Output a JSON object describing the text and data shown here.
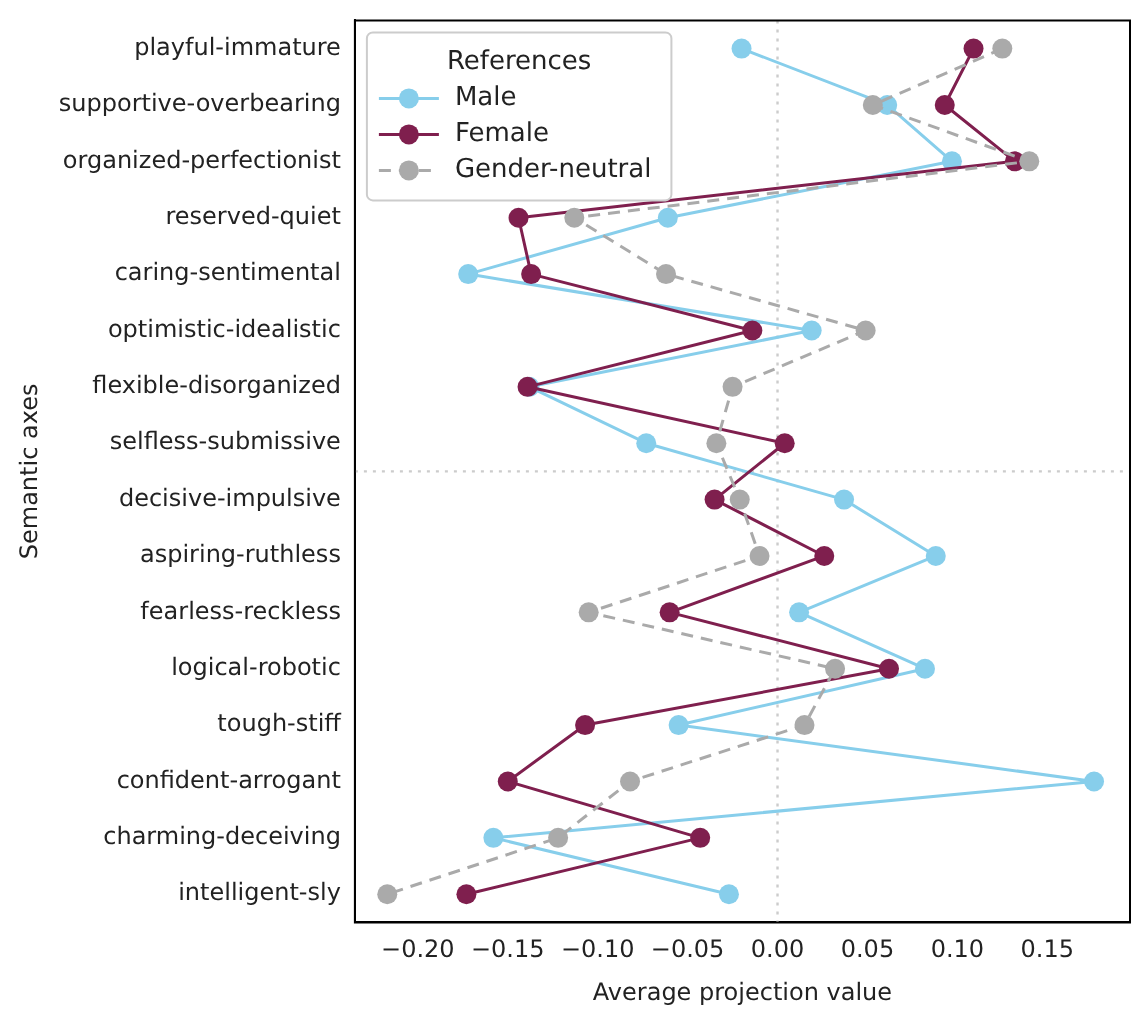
{
  "chart_data": {
    "type": "line",
    "orientation": "horizontal",
    "xlabel": "Average projection value",
    "ylabel": "Semantic axes",
    "legend_title": "References",
    "categories": [
      "playful-immature",
      "supportive-overbearing",
      "organized-perfectionist",
      "reserved-quiet",
      "caring-sentimental",
      "optimistic-idealistic",
      "flexible-disorganized",
      "selfless-submissive",
      "decisive-impulsive",
      "aspiring-ruthless",
      "fearless-reckless",
      "logical-robotic",
      "tough-stiff",
      "confident-arrogant",
      "charming-deceiving",
      "intelligent-sly"
    ],
    "series": [
      {
        "name": "Male",
        "color": "#87ceeb",
        "line_style": "solid",
        "values": [
          -0.02,
          0.061,
          0.097,
          -0.061,
          -0.172,
          0.019,
          -0.138,
          -0.073,
          0.037,
          0.088,
          0.012,
          0.082,
          -0.055,
          0.176,
          -0.158,
          -0.027
        ]
      },
      {
        "name": "Female",
        "color": "#7f1f4e",
        "line_style": "solid",
        "values": [
          0.109,
          0.093,
          0.132,
          -0.144,
          -0.137,
          -0.014,
          -0.139,
          0.004,
          -0.035,
          0.026,
          -0.06,
          0.062,
          -0.107,
          -0.15,
          -0.043,
          -0.173
        ]
      },
      {
        "name": "Gender-neutral",
        "color": "#aaaaaa",
        "line_style": "dashed",
        "values": [
          0.125,
          0.053,
          0.14,
          -0.113,
          -0.062,
          0.049,
          -0.025,
          -0.034,
          -0.021,
          -0.01,
          -0.105,
          0.032,
          0.015,
          -0.082,
          -0.122,
          -0.217
        ]
      }
    ],
    "marker": "circle",
    "xlim": [
      -0.235,
      0.196
    ],
    "xticks": [
      {
        "value": -0.2,
        "label": "−0.20"
      },
      {
        "value": -0.15,
        "label": "−0.15"
      },
      {
        "value": -0.1,
        "label": "−0.10"
      },
      {
        "value": -0.05,
        "label": "−0.05"
      },
      {
        "value": 0,
        "label": "0.00"
      },
      {
        "value": 0.05,
        "label": "0.05"
      },
      {
        "value": 0.1,
        "label": "0.10"
      },
      {
        "value": 0.15,
        "label": "0.15"
      }
    ],
    "ref_lines": [
      {
        "axis": "x",
        "value": 0,
        "color": "#cccccc",
        "line_style": "dotted"
      }
    ],
    "grid": false,
    "legend": "top left"
  }
}
